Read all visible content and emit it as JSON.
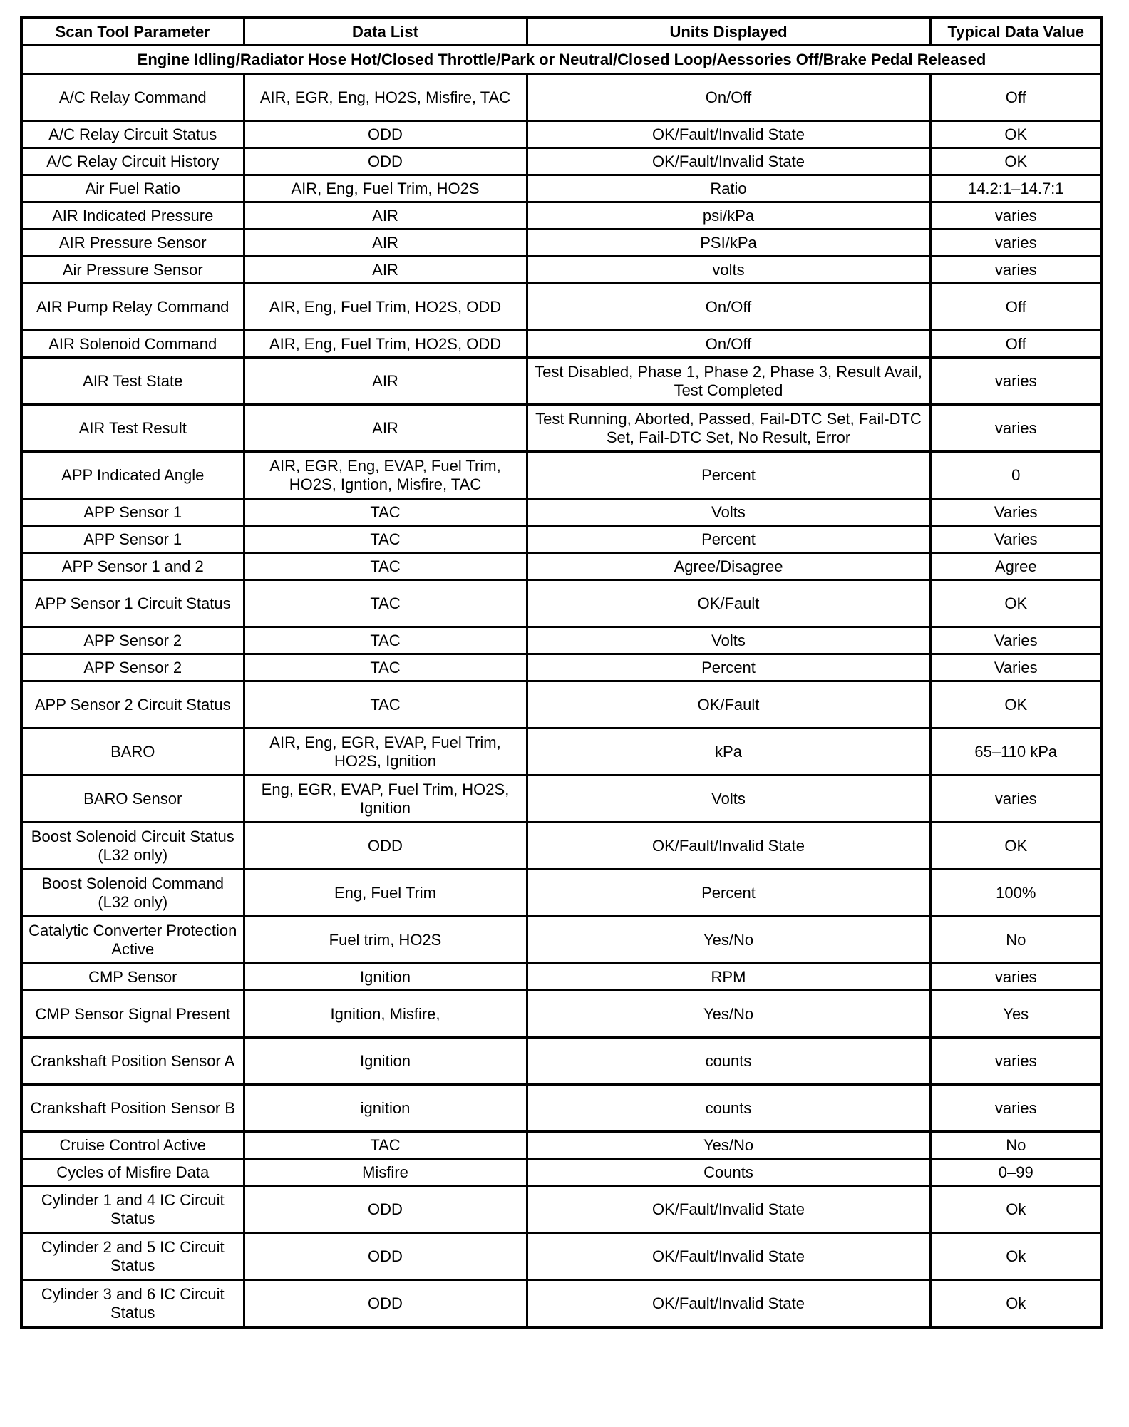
{
  "table": {
    "headers": [
      "Scan Tool Parameter",
      "Data List",
      "Units Displayed",
      "Typical Data Value"
    ],
    "condition": "Engine Idling/Radiator Hose Hot/Closed Throttle/Park or Neutral/Closed Loop/Aessories Off/Brake Pedal Released",
    "rows": [
      [
        "A/C Relay Command",
        "AIR, EGR, Eng, HO2S, Misfire, TAC",
        "On/Off",
        "Off"
      ],
      [
        "A/C Relay Circuit Status",
        "ODD",
        "OK/Fault/Invalid State",
        "OK"
      ],
      [
        "A/C Relay Circuit History",
        "ODD",
        "OK/Fault/Invalid State",
        "OK"
      ],
      [
        "Air Fuel Ratio",
        "AIR, Eng, Fuel Trim, HO2S",
        "Ratio",
        "14.2:1–14.7:1"
      ],
      [
        "AIR Indicated Pressure",
        "AIR",
        "psi/kPa",
        "varies"
      ],
      [
        "AIR Pressure Sensor",
        "AIR",
        "PSI/kPa",
        "varies"
      ],
      [
        "Air Pressure Sensor",
        "AIR",
        "volts",
        "varies"
      ],
      [
        "AIR Pump Relay Command",
        "AIR, Eng, Fuel Trim, HO2S, ODD",
        "On/Off",
        "Off"
      ],
      [
        "AIR Solenoid Command",
        "AIR, Eng, Fuel Trim, HO2S, ODD",
        "On/Off",
        "Off"
      ],
      [
        "AIR Test State",
        "AIR",
        "Test Disabled, Phase 1, Phase 2, Phase 3, Result Avail, Test Completed",
        "varies"
      ],
      [
        "AIR Test Result",
        "AIR",
        "Test Running, Aborted, Passed, Fail-DTC Set, Fail-DTC Set, Fail-DTC Set, No Result, Error",
        "varies"
      ],
      [
        "APP Indicated Angle",
        "AIR, EGR, Eng, EVAP, Fuel Trim, HO2S, Igntion, Misfire, TAC",
        "Percent",
        "0"
      ],
      [
        "APP Sensor 1",
        "TAC",
        "Volts",
        "Varies"
      ],
      [
        "APP Sensor 1",
        "TAC",
        "Percent",
        "Varies"
      ],
      [
        "APP Sensor 1 and 2",
        "TAC",
        "Agree/Disagree",
        "Agree"
      ],
      [
        "APP Sensor 1 Circuit Status",
        "TAC",
        "OK/Fault",
        "OK"
      ],
      [
        "APP Sensor 2",
        "TAC",
        "Volts",
        "Varies"
      ],
      [
        "APP Sensor 2",
        "TAC",
        "Percent",
        "Varies"
      ],
      [
        "APP Sensor 2 Circuit Status",
        "TAC",
        "OK/Fault",
        "OK"
      ],
      [
        "BARO",
        "AIR, Eng, EGR, EVAP, Fuel Trim, HO2S, Ignition",
        "kPa",
        "65–110 kPa"
      ],
      [
        "BARO Sensor",
        "Eng, EGR, EVAP, Fuel Trim, HO2S, Ignition",
        "Volts",
        "varies"
      ],
      [
        "Boost Solenoid Circuit Status (L32 only)",
        "ODD",
        "OK/Fault/Invalid State",
        "OK"
      ],
      [
        "Boost Solenoid Command (L32 only)",
        "Eng, Fuel Trim",
        "Percent",
        "100%"
      ],
      [
        "Catalytic Converter Protection Active",
        "Fuel trim, HO2S",
        "Yes/No",
        "No"
      ],
      [
        "CMP Sensor",
        "Ignition",
        "RPM",
        "varies"
      ],
      [
        "CMP Sensor Signal Present",
        "Ignition, Misfire,",
        "Yes/No",
        "Yes"
      ],
      [
        "Crankshaft Position Sensor A",
        "Ignition",
        "counts",
        "varies"
      ],
      [
        "Crankshaft Position Sensor B",
        "ignition",
        "counts",
        "varies"
      ],
      [
        "Cruise Control Active",
        "TAC",
        "Yes/No",
        "No"
      ],
      [
        "Cycles of Misfire Data",
        "Misfire",
        "Counts",
        "0–99"
      ],
      [
        "Cylinder 1 and 4 IC Circuit Status",
        "ODD",
        "OK/Fault/Invalid State",
        "Ok"
      ],
      [
        "Cylinder 2 and 5 IC Circuit Status",
        "ODD",
        "OK/Fault/Invalid State",
        "Ok"
      ],
      [
        "Cylinder 3 and 6 IC Circuit Status",
        "ODD",
        "OK/Fault/Invalid State",
        "Ok"
      ]
    ]
  }
}
